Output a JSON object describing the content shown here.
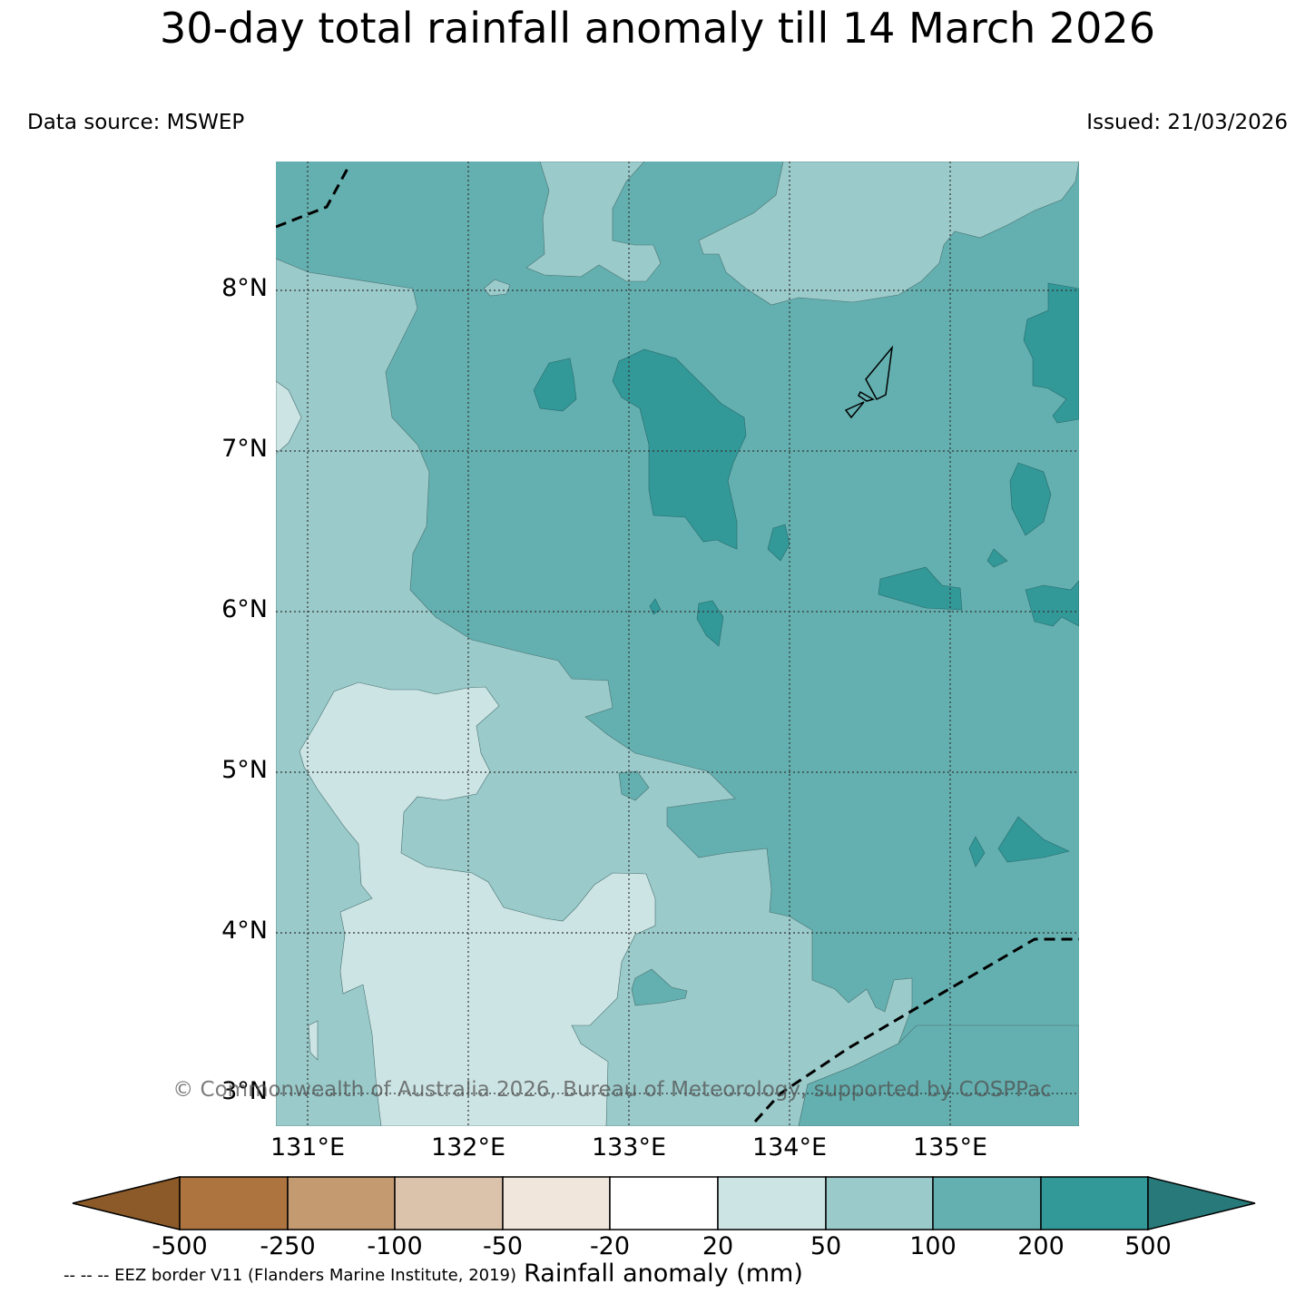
{
  "title": "30-day total rainfall anomaly till 14 March 2026",
  "data_source": "Data source: MSWEP",
  "issued": "Issued: 21/03/2026",
  "lat_labels": [
    "8°N",
    "7°N",
    "6°N",
    "5°N",
    "4°N",
    "3°N"
  ],
  "lon_labels": [
    "131°E",
    "132°E",
    "133°E",
    "134°E",
    "135°E"
  ],
  "copyright": "© Commonwealth of Australia 2026, Bureau of Meteorology, supported by COSPPac",
  "colorbar": {
    "title": "Rainfall anomaly (mm)",
    "tick_labels": [
      "-500",
      "-250",
      "-100",
      "-50",
      "-20",
      "20",
      "50",
      "100",
      "200",
      "500"
    ],
    "colors": [
      "#8c5a28",
      "#ad743f",
      "#c49a70",
      "#dbc3ab",
      "#f0e6dc",
      "#ffffff",
      "#cde4e4",
      "#9acaca",
      "#64b0b0",
      "#329898",
      "#287a7a"
    ]
  },
  "eez_note": "-- -- -- EEZ border V11 (Flanders Marine Institute, 2019)",
  "colors": {
    "anom_20_50": "#cde4e4",
    "anom_50_100": "#9acaca",
    "anom_100_200": "#64b0b0",
    "anom_200_500": "#329898"
  }
}
